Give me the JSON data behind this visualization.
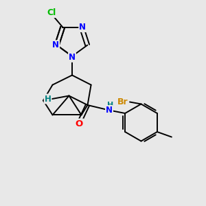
{
  "background_color": "#e8e8e8",
  "bond_color": "#000000",
  "atom_colors": {
    "Cl": "#00bb00",
    "N": "#0000ff",
    "O": "#ff0000",
    "Br": "#cc8800",
    "H": "#008080",
    "C": "#000000"
  },
  "figsize": [
    3.0,
    3.0
  ],
  "dpi": 100,
  "xlim": [
    0,
    10
  ],
  "ylim": [
    0,
    10
  ]
}
